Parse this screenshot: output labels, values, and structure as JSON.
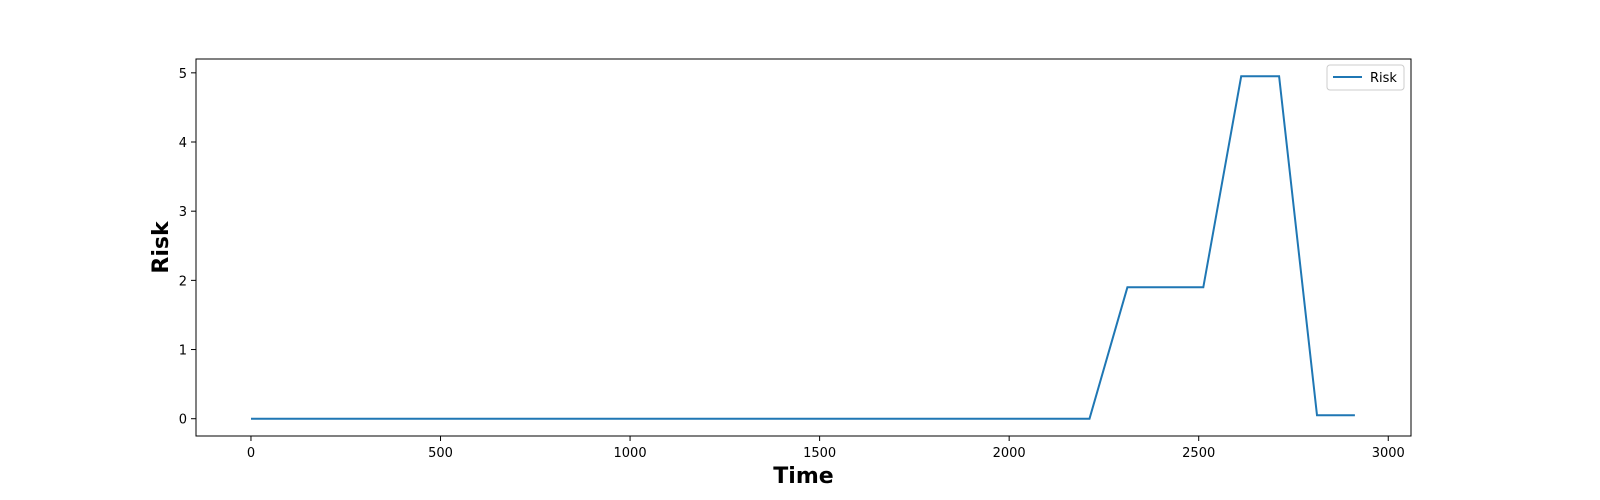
{
  "chart_data": {
    "type": "line",
    "title": "",
    "xlabel": "Time",
    "ylabel": "Risk",
    "xlim": [
      -145,
      3060
    ],
    "ylim": [
      -0.25,
      5.2
    ],
    "xticks": [
      0,
      500,
      1000,
      1500,
      2000,
      2500,
      3000
    ],
    "yticks": [
      0,
      1,
      2,
      3,
      4,
      5
    ],
    "grid": false,
    "legend_position": "top-right",
    "series": [
      {
        "name": "Risk",
        "color": "#1f77b4",
        "x": [
          0,
          2212,
          2312,
          2412,
          2512,
          2612,
          2712,
          2812,
          2912
        ],
        "y": [
          0,
          0,
          1.9,
          1.9,
          1.9,
          4.95,
          4.95,
          0.05,
          0.05
        ]
      }
    ]
  }
}
